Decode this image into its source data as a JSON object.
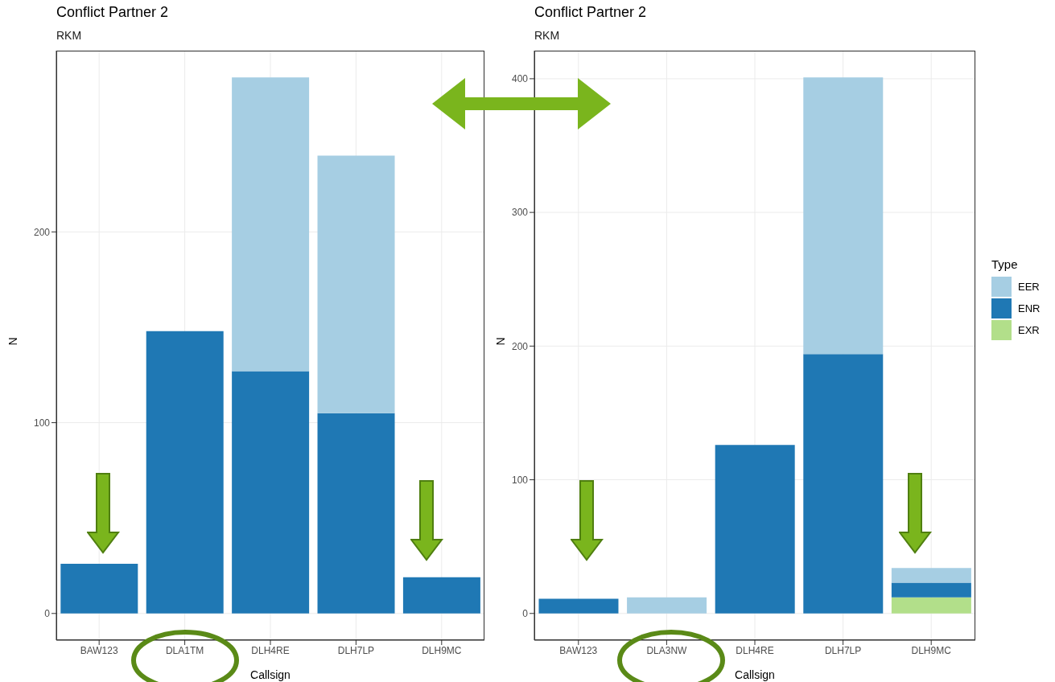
{
  "chart_data": [
    {
      "type": "bar",
      "title": "Conflict Partner 2",
      "subtitle": "RKM",
      "xlabel": "Callsign",
      "ylabel": "N",
      "categories": [
        "BAW123",
        "DLA1TM",
        "DLH4RE",
        "DLH7LP",
        "DLH9MC"
      ],
      "stacked": true,
      "ylim": [
        -14,
        295
      ],
      "yticks": [
        0,
        100,
        200
      ],
      "grid": true,
      "series": [
        {
          "color": "#1f78b4",
          "values": [
            26,
            148,
            127,
            105,
            19
          ]
        },
        {
          "color": "#a6cee3",
          "values": [
            0,
            0,
            154,
            135,
            0
          ]
        }
      ]
    },
    {
      "type": "bar",
      "title": "Conflict Partner 2",
      "subtitle": "RKM",
      "xlabel": "Callsign",
      "ylabel": "N",
      "legend_title": "Type",
      "legend": "right",
      "categories": [
        "BAW123",
        "DLA3NW",
        "DLH4RE",
        "DLH7LP",
        "DLH9MC"
      ],
      "stacked": true,
      "ylim": [
        -20,
        421
      ],
      "yticks": [
        0,
        100,
        200,
        300,
        400
      ],
      "grid": true,
      "series": [
        {
          "name": "EXR",
          "color": "#b2df8a",
          "values": [
            0,
            0,
            0,
            0,
            12
          ]
        },
        {
          "name": "ENR",
          "color": "#1f78b4",
          "values": [
            11,
            0,
            126,
            194,
            11
          ]
        },
        {
          "name": "EER",
          "color": "#a6cee3",
          "values": [
            0,
            12,
            0,
            207,
            11
          ]
        }
      ]
    }
  ]
}
